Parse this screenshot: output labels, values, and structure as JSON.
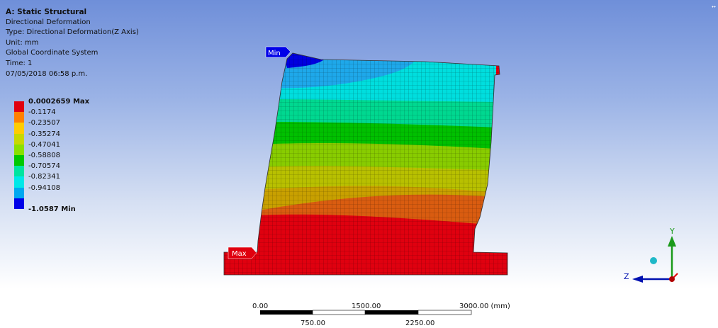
{
  "header": {
    "title": "A: Static Structural",
    "result_name": "Directional Deformation",
    "type_line": "Type: Directional Deformation(Z Axis)",
    "unit_line": "Unit: mm",
    "coord_line": "Global Coordinate System",
    "time_line": "Time: 1",
    "date_line": "07/05/2018 06:58 p.m."
  },
  "legend": {
    "max_label": "0.0002659 Max",
    "min_label": "-1.0587 Min",
    "intermediate": [
      "-0.1174",
      "-0.23507",
      "-0.35274",
      "-0.47041",
      "-0.58808",
      "-0.70574",
      "-0.82341",
      "-0.94108"
    ],
    "colors": [
      "#e0000f",
      "#ff8000",
      "#ffcc00",
      "#c8d800",
      "#8ae000",
      "#00c800",
      "#00e4a0",
      "#00e8e8",
      "#00a8f0",
      "#0000e8"
    ]
  },
  "probes": {
    "max_tag": "Max",
    "min_tag": "Min"
  },
  "scale_bar": {
    "top_labels": [
      "0.00",
      "1500.00",
      "3000.00 (mm)"
    ],
    "bottom_labels": [
      "750.00",
      "2250.00"
    ]
  },
  "triad": {
    "y_label": "Y",
    "z_label": "Z",
    "colors": {
      "y_axis": "#1a9a1a",
      "z_axis": "#0010b0",
      "x_axis": "#e00000",
      "iso_ball": "#1fb8c8"
    }
  }
}
